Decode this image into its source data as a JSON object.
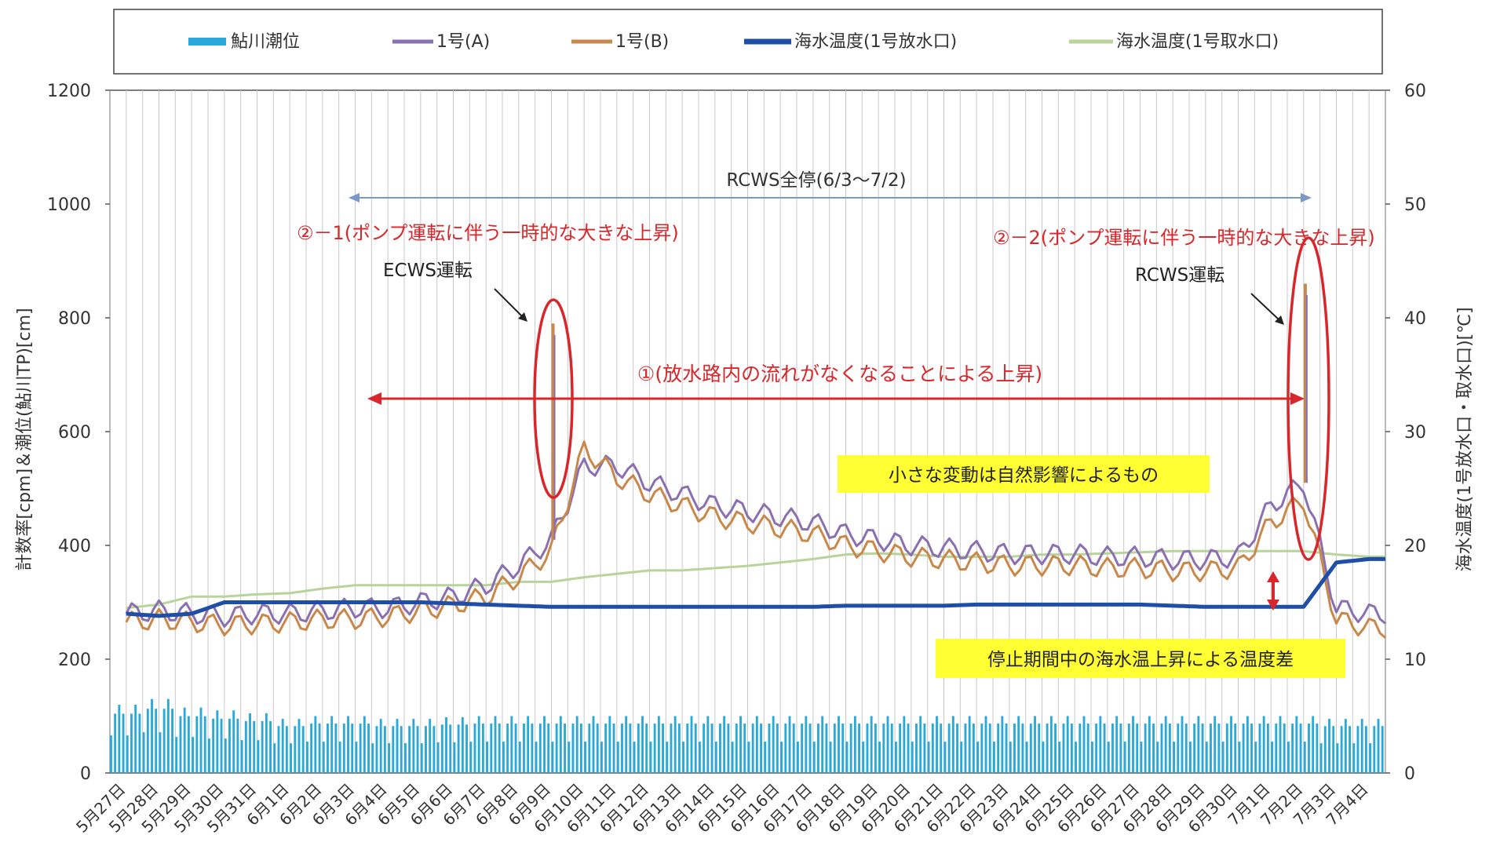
{
  "legend": [
    {
      "label": "鮎川潮位",
      "color": "#2aa8d8",
      "kind": "bar"
    },
    {
      "label": "1号(A)",
      "color": "#8a70b0",
      "kind": "line"
    },
    {
      "label": "1号(B)",
      "color": "#c8884a",
      "kind": "line"
    },
    {
      "label": "海水温度(1号放水口)",
      "color": "#1f4ea6",
      "kind": "thick-line"
    },
    {
      "label": "海水温度(1号取水口)",
      "color": "#b8d49a",
      "kind": "line"
    }
  ],
  "axes": {
    "left_label": "計数率[cpm]＆潮位(鮎川TP)[cm]",
    "right_label": "海水温度(1号放水口・取水口)[℃]",
    "left_ticks": [
      "0",
      "200",
      "400",
      "600",
      "800",
      "1000",
      "1200"
    ],
    "right_ticks": [
      "0",
      "10",
      "20",
      "30",
      "40",
      "50",
      "60"
    ]
  },
  "annotations": {
    "rcws_period": "RCWS全停(6/3〜7/2)",
    "label_2_1": "②－1(ポンプ運転に伴う一時的な大きな上昇)",
    "label_2_2": "②－2(ポンプ運転に伴う一時的な大きな上昇)",
    "ecws": "ECWS運転",
    "rcws": "RCWS運転",
    "label_1": "①(放水路内の流れがなくなることによる上昇)",
    "small_variation": "小さな変動は自然影響によるもの",
    "temp_diff": "停止期間中の海水温上昇による温度差"
  },
  "chart_data": {
    "type": "line",
    "x": [
      "5月27日",
      "5月28日",
      "5月29日",
      "5月30日",
      "5月31日",
      "6月1日",
      "6月2日",
      "6月3日",
      "6月4日",
      "6月5日",
      "6月6日",
      "6月7日",
      "6月8日",
      "6月9日",
      "6月10日",
      "6月11日",
      "6月12日",
      "6月13日",
      "6月14日",
      "6月15日",
      "6月16日",
      "6月17日",
      "6月18日",
      "6月19日",
      "6月20日",
      "6月21日",
      "6月22日",
      "6月23日",
      "6月24日",
      "6月25日",
      "6月26日",
      "6月27日",
      "6月28日",
      "6月29日",
      "6月30日",
      "7月1日",
      "7月2日",
      "7月3日",
      "7月4日"
    ],
    "ylim_left": [
      0,
      1200
    ],
    "ylim_right": [
      0,
      60
    ],
    "series": [
      {
        "name": "鮎川潮位",
        "axis": "left",
        "type": "bar",
        "values": [
          120,
          130,
          115,
          110,
          105,
          95,
          100,
          100,
          95,
          95,
          98,
          100,
          100,
          100,
          100,
          100,
          100,
          100,
          100,
          100,
          100,
          100,
          100,
          100,
          100,
          100,
          100,
          100,
          100,
          100,
          100,
          100,
          100,
          100,
          100,
          100,
          100,
          95,
          95
        ]
      },
      {
        "name": "1号(A)",
        "axis": "left",
        "values": [
          280,
          285,
          280,
          275,
          280,
          280,
          285,
          290,
          290,
          300,
          310,
          330,
          365,
          410,
          540,
          540,
          510,
          490,
          470,
          460,
          450,
          440,
          420,
          410,
          400,
          395,
          390,
          385,
          385,
          385,
          380,
          380,
          375,
          375,
          380,
          470,
          510,
          290,
          280
        ]
      },
      {
        "name": "1号(B)",
        "axis": "left",
        "values": [
          265,
          270,
          265,
          260,
          262,
          265,
          270,
          270,
          275,
          285,
          295,
          310,
          345,
          390,
          570,
          520,
          490,
          470,
          450,
          440,
          430,
          420,
          400,
          390,
          380,
          375,
          370,
          365,
          365,
          365,
          360,
          360,
          355,
          355,
          360,
          440,
          480,
          270,
          255
        ]
      },
      {
        "name": "海水温度(1号放水口)",
        "axis": "right",
        "values": [
          14,
          13.8,
          14,
          15,
          15,
          15,
          15,
          15,
          15,
          15,
          14.9,
          14.8,
          14.7,
          14.6,
          14.6,
          14.6,
          14.6,
          14.6,
          14.6,
          14.6,
          14.6,
          14.6,
          14.7,
          14.7,
          14.7,
          14.7,
          14.8,
          14.8,
          14.8,
          14.8,
          14.8,
          14.8,
          14.7,
          14.6,
          14.6,
          14.6,
          14.6,
          18.5,
          18.8
        ]
      },
      {
        "name": "海水温度(1号取水口)",
        "axis": "right",
        "values": [
          14.5,
          14.8,
          15.5,
          15.5,
          15.7,
          15.8,
          16.2,
          16.5,
          16.5,
          16.5,
          16.5,
          16.5,
          16.8,
          16.8,
          17.2,
          17.5,
          17.8,
          17.8,
          18,
          18.2,
          18.5,
          18.8,
          19.2,
          19.3,
          19.2,
          19,
          19,
          19,
          19.2,
          19.2,
          19.3,
          19.4,
          19.5,
          19.5,
          19.5,
          19.5,
          19.5,
          19.2,
          19
        ]
      }
    ],
    "spikes": [
      {
        "series": "1号(A)",
        "x": "6月9日",
        "value": 790
      },
      {
        "series": "1号(A)",
        "x": "7月2日",
        "value": 860
      }
    ]
  }
}
